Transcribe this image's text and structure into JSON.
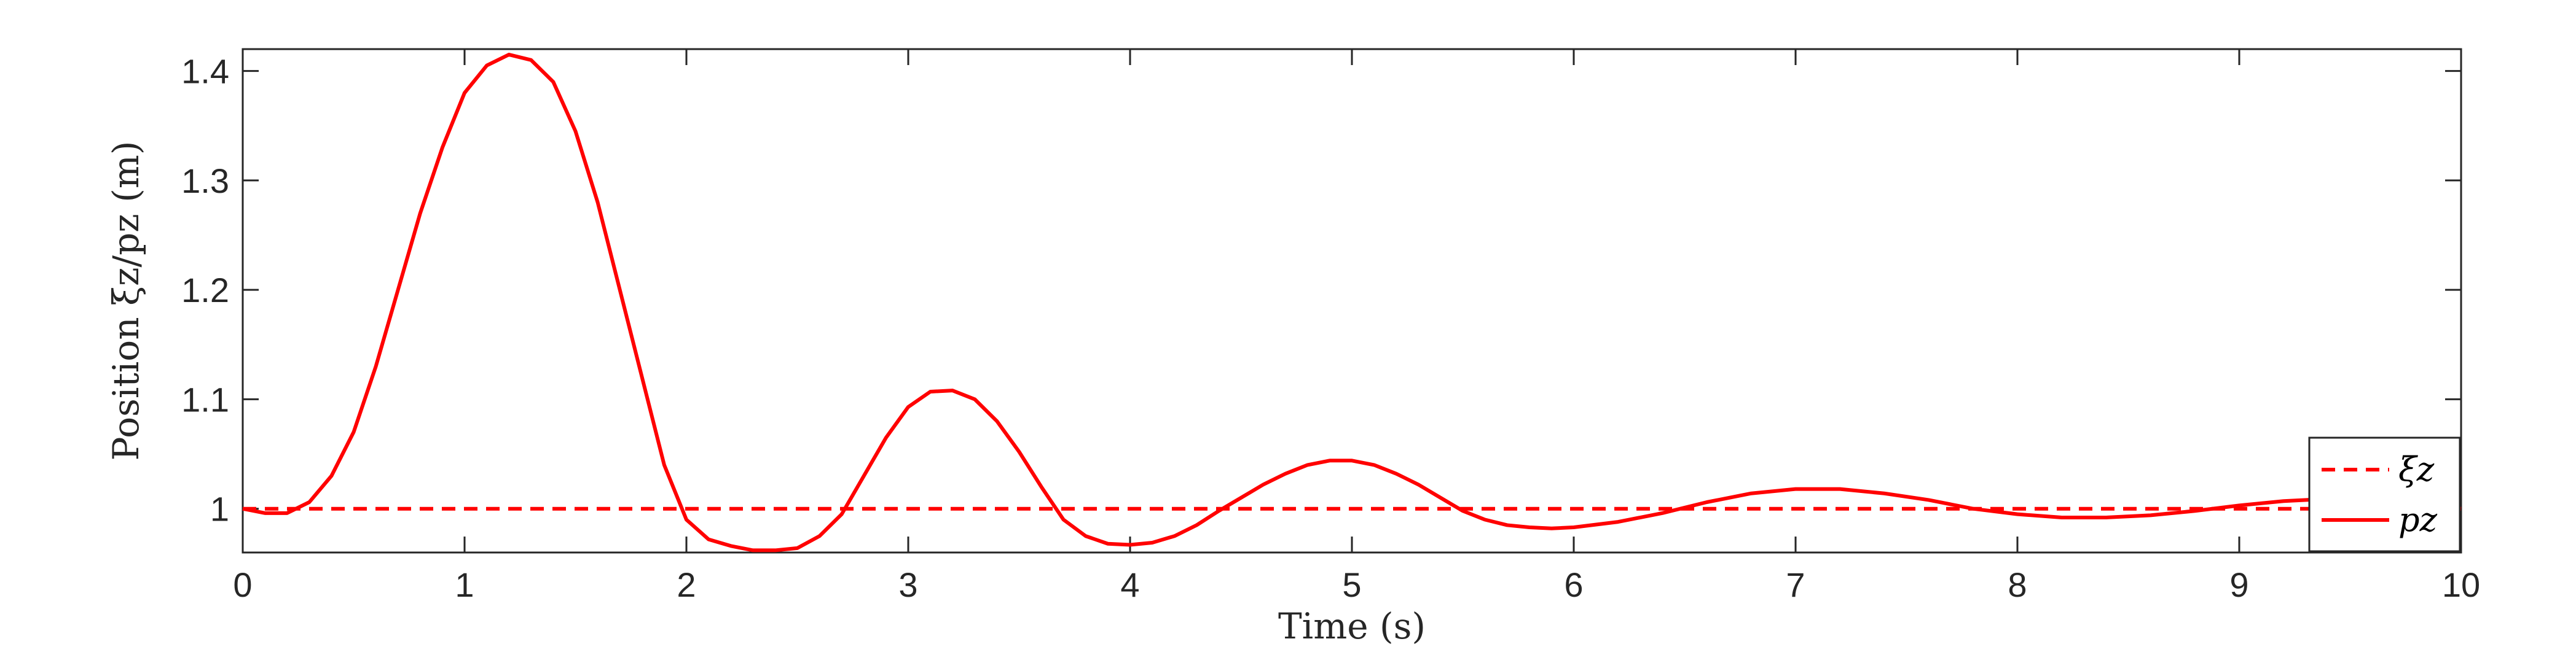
{
  "chart_data": {
    "type": "line",
    "xlabel": "Time (s)",
    "ylabel": "Position ξz/pz (m)",
    "xlim": [
      0,
      10
    ],
    "ylim": [
      0.96,
      1.42
    ],
    "xticks": [
      0,
      1,
      2,
      3,
      4,
      5,
      6,
      7,
      8,
      9,
      10
    ],
    "yticks": [
      1,
      1.1,
      1.2,
      1.3,
      1.4
    ],
    "xtick_labels": [
      "0",
      "1",
      "2",
      "3",
      "4",
      "5",
      "6",
      "7",
      "8",
      "9",
      "10"
    ],
    "ytick_labels": [
      "1",
      "1.1",
      "1.2",
      "1.3",
      "1.4"
    ],
    "grid": false,
    "legend_position": "bottom-right",
    "series": [
      {
        "name": "ξz",
        "style": "dashed",
        "color": "#ff0000",
        "x": [
          0,
          10
        ],
        "y": [
          1.0,
          1.0
        ]
      },
      {
        "name": "pz",
        "style": "solid",
        "color": "#ff0000",
        "x": [
          0,
          0.1,
          0.2,
          0.3,
          0.4,
          0.5,
          0.6,
          0.7,
          0.8,
          0.9,
          1.0,
          1.1,
          1.2,
          1.3,
          1.4,
          1.5,
          1.6,
          1.7,
          1.8,
          1.9,
          2.0,
          2.1,
          2.2,
          2.3,
          2.4,
          2.5,
          2.6,
          2.7,
          2.8,
          2.9,
          3.0,
          3.1,
          3.2,
          3.3,
          3.4,
          3.5,
          3.6,
          3.7,
          3.8,
          3.9,
          4.0,
          4.1,
          4.2,
          4.3,
          4.4,
          4.5,
          4.6,
          4.7,
          4.8,
          4.9,
          5.0,
          5.1,
          5.2,
          5.3,
          5.4,
          5.5,
          5.6,
          5.7,
          5.8,
          5.9,
          6.0,
          6.2,
          6.4,
          6.6,
          6.8,
          7.0,
          7.2,
          7.4,
          7.6,
          7.8,
          8.0,
          8.2,
          8.4,
          8.6,
          8.8,
          9.0,
          9.2,
          9.4,
          9.6,
          9.8,
          10.0
        ],
        "y": [
          1.0,
          0.996,
          0.996,
          1.006,
          1.03,
          1.07,
          1.13,
          1.2,
          1.27,
          1.33,
          1.38,
          1.405,
          1.415,
          1.41,
          1.39,
          1.345,
          1.28,
          1.2,
          1.12,
          1.04,
          0.99,
          0.972,
          0.966,
          0.962,
          0.962,
          0.964,
          0.975,
          0.995,
          1.03,
          1.065,
          1.093,
          1.107,
          1.108,
          1.1,
          1.08,
          1.052,
          1.02,
          0.99,
          0.975,
          0.968,
          0.967,
          0.969,
          0.975,
          0.985,
          0.998,
          1.01,
          1.022,
          1.032,
          1.04,
          1.044,
          1.044,
          1.04,
          1.032,
          1.022,
          1.01,
          0.998,
          0.99,
          0.985,
          0.983,
          0.982,
          0.983,
          0.988,
          0.996,
          1.006,
          1.014,
          1.018,
          1.018,
          1.014,
          1.008,
          1.0,
          0.995,
          0.992,
          0.992,
          0.994,
          0.998,
          1.003,
          1.007,
          1.009,
          1.008,
          1.004,
          1.0
        ]
      }
    ]
  }
}
